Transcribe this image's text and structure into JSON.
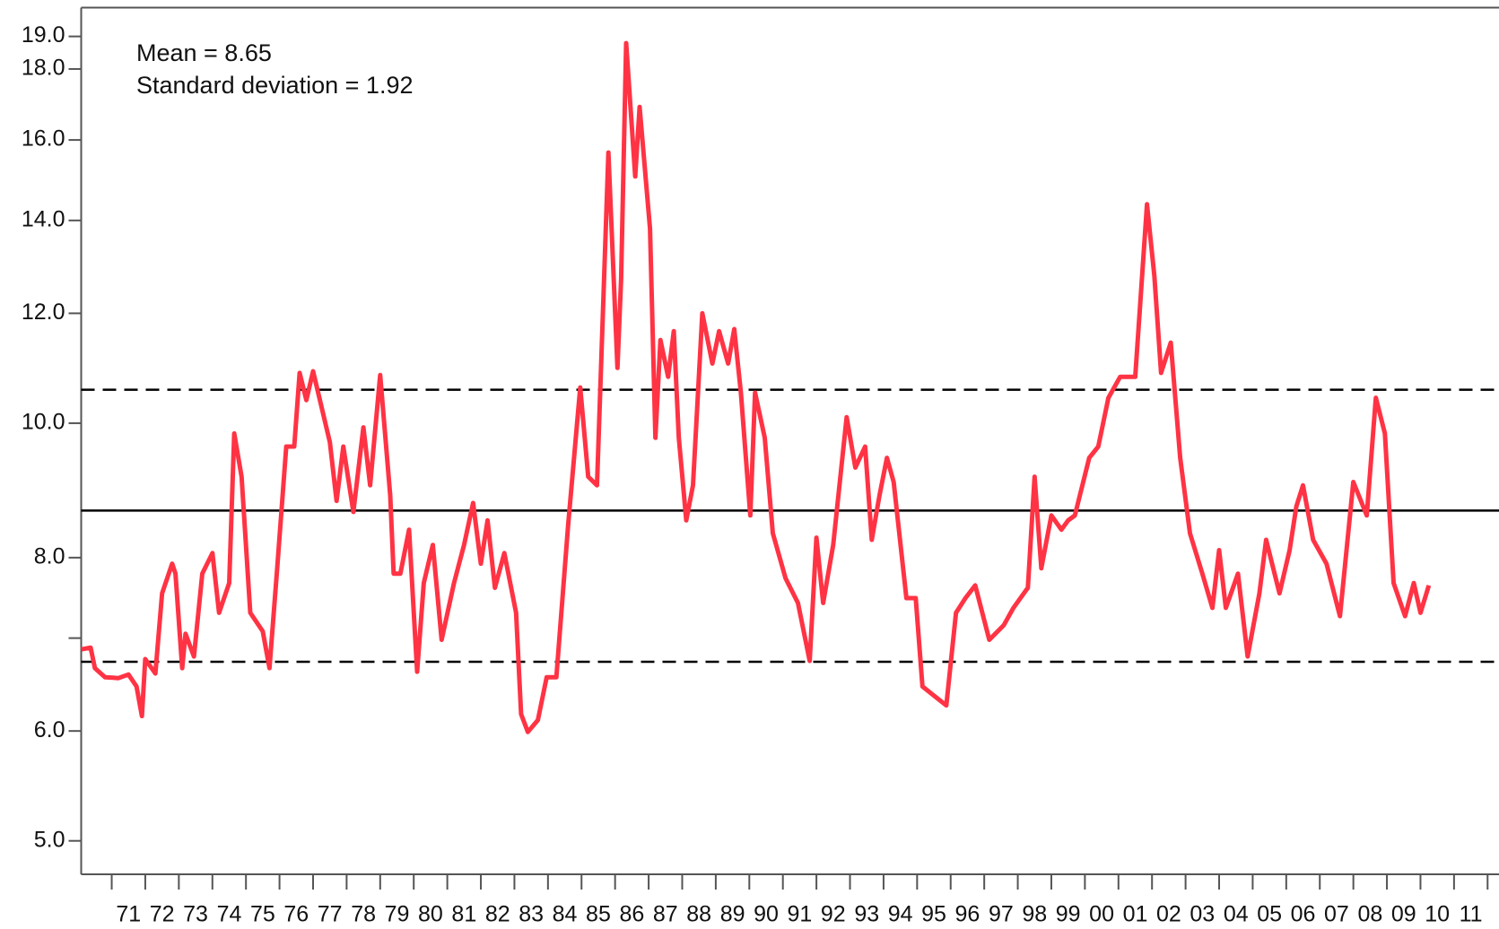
{
  "chart_data": {
    "type": "line",
    "annotations": [
      "Mean = 8.65",
      "Standard deviation = 1.92"
    ],
    "log_scale": true,
    "color": "#ff3344",
    "x": [
      1970.09,
      1970.37,
      1970.5,
      1970.8,
      1971.2,
      1971.5,
      1971.74,
      1971.9,
      1972.0,
      1972.3,
      1972.5,
      1972.8,
      1972.9,
      1973.1,
      1973.2,
      1973.45,
      1973.7,
      1974.0,
      1974.2,
      1974.5,
      1974.65,
      1974.87,
      1975.13,
      1975.5,
      1975.7,
      1975.93,
      1976.2,
      1976.44,
      1976.6,
      1976.8,
      1977.0,
      1977.5,
      1977.7,
      1977.9,
      1978.2,
      1978.5,
      1978.7,
      1979.0,
      1979.3,
      1979.4,
      1979.6,
      1979.86,
      1980.1,
      1980.3,
      1980.57,
      1980.83,
      1981.2,
      1981.5,
      1981.77,
      1982.0,
      1982.2,
      1982.42,
      1982.7,
      1983.05,
      1983.2,
      1983.4,
      1983.7,
      1983.96,
      1984.25,
      1984.6,
      1984.96,
      1985.2,
      1985.46,
      1985.8,
      1986.07,
      1986.18,
      1986.33,
      1986.6,
      1986.73,
      1987.04,
      1987.2,
      1987.35,
      1987.58,
      1987.75,
      1987.9,
      1988.12,
      1988.32,
      1988.6,
      1988.9,
      1989.1,
      1989.37,
      1989.55,
      1989.75,
      1990.03,
      1990.17,
      1990.46,
      1990.7,
      1991.08,
      1991.45,
      1991.8,
      1992.0,
      1992.2,
      1992.5,
      1992.9,
      1993.16,
      1993.45,
      1993.65,
      1993.88,
      1994.1,
      1994.3,
      1994.68,
      1994.96,
      1995.16,
      1995.44,
      1995.87,
      1996.16,
      1996.44,
      1996.73,
      1997.15,
      1997.58,
      1997.87,
      1998.3,
      1998.5,
      1998.7,
      1999.0,
      1999.3,
      1999.5,
      1999.7,
      2000.13,
      2000.4,
      2000.7,
      2001.05,
      2001.5,
      2001.85,
      2002.07,
      2002.27,
      2002.56,
      2002.84,
      2003.13,
      2003.5,
      2003.8,
      2004.0,
      2004.2,
      2004.56,
      2004.85,
      2005.2,
      2005.4,
      2005.8,
      2006.1,
      2006.3,
      2006.5,
      2006.8,
      2007.2,
      2007.6,
      2008.0,
      2008.4,
      2008.67,
      2008.94,
      2009.2,
      2009.54,
      2009.8,
      2010.0,
      2010.25
    ],
    "values": [
      6.87,
      6.89,
      6.66,
      6.56,
      6.55,
      6.59,
      6.46,
      6.15,
      6.76,
      6.6,
      7.54,
      7.92,
      7.79,
      6.66,
      7.05,
      6.79,
      7.79,
      8.06,
      7.3,
      7.67,
      9.83,
      9.15,
      7.3,
      7.08,
      6.66,
      7.86,
      9.62,
      9.62,
      10.87,
      10.39,
      10.9,
      9.69,
      8.79,
      9.62,
      8.63,
      9.93,
      9.02,
      10.83,
      8.87,
      7.79,
      7.79,
      8.38,
      6.62,
      7.67,
      8.17,
      6.98,
      7.67,
      8.17,
      8.76,
      7.92,
      8.51,
      7.61,
      8.06,
      7.3,
      6.17,
      5.99,
      6.11,
      6.56,
      6.56,
      8.44,
      10.61,
      9.15,
      9.02,
      15.67,
      10.96,
      12.71,
      18.79,
      15.06,
      16.9,
      13.81,
      9.76,
      11.48,
      10.8,
      11.65,
      9.76,
      8.51,
      9.02,
      12.0,
      11.04,
      11.65,
      11.04,
      11.69,
      10.52,
      8.58,
      10.52,
      9.76,
      8.33,
      7.73,
      7.42,
      6.74,
      8.27,
      7.42,
      8.17,
      10.1,
      9.29,
      9.62,
      8.24,
      8.87,
      9.44,
      9.07,
      7.48,
      7.48,
      6.46,
      6.38,
      6.26,
      7.3,
      7.48,
      7.64,
      6.98,
      7.15,
      7.36,
      7.61,
      9.15,
      7.86,
      8.58,
      8.38,
      8.51,
      8.58,
      9.44,
      9.62,
      10.43,
      10.8,
      10.8,
      14.38,
      12.77,
      10.87,
      11.43,
      9.44,
      8.33,
      7.79,
      7.36,
      8.1,
      7.36,
      7.79,
      6.79,
      7.54,
      8.24,
      7.54,
      8.1,
      8.71,
      9.02,
      8.24,
      7.92,
      7.26,
      9.07,
      8.58,
      10.43,
      9.83,
      7.67,
      7.26,
      7.67,
      7.3,
      7.64
    ],
    "hlines": [
      {
        "value": 8.65,
        "style": "solid"
      },
      {
        "value": 10.57,
        "style": "dashed"
      },
      {
        "value": 6.73,
        "style": "dashed"
      }
    ],
    "xlim": [
      1970.09,
      2012.34
    ],
    "xticks": [
      1971,
      1972,
      1973,
      1974,
      1975,
      1976,
      1977,
      1978,
      1979,
      1980,
      1981,
      1982,
      1983,
      1984,
      1985,
      1986,
      1987,
      1988,
      1989,
      1990,
      1991,
      1992,
      1993,
      1994,
      1995,
      1996,
      1997,
      1998,
      1999,
      2000,
      2001,
      2002,
      2003,
      2004,
      2005,
      2006,
      2007,
      2008,
      2009,
      2010,
      2011,
      2012
    ],
    "xticklabels": [
      {
        "value": 1971.5,
        "label": "71"
      },
      {
        "value": 1972.5,
        "label": "72"
      },
      {
        "value": 1973.5,
        "label": "73"
      },
      {
        "value": 1974.5,
        "label": "74"
      },
      {
        "value": 1975.5,
        "label": "75"
      },
      {
        "value": 1976.5,
        "label": "76"
      },
      {
        "value": 1977.5,
        "label": "77"
      },
      {
        "value": 1978.5,
        "label": "78"
      },
      {
        "value": 1979.5,
        "label": "79"
      },
      {
        "value": 1980.5,
        "label": "80"
      },
      {
        "value": 1981.5,
        "label": "81"
      },
      {
        "value": 1982.5,
        "label": "82"
      },
      {
        "value": 1983.5,
        "label": "83"
      },
      {
        "value": 1984.5,
        "label": "84"
      },
      {
        "value": 1985.5,
        "label": "85"
      },
      {
        "value": 1986.5,
        "label": "86"
      },
      {
        "value": 1987.5,
        "label": "87"
      },
      {
        "value": 1988.5,
        "label": "88"
      },
      {
        "value": 1989.5,
        "label": "89"
      },
      {
        "value": 1990.5,
        "label": "90"
      },
      {
        "value": 1991.5,
        "label": "91"
      },
      {
        "value": 1992.5,
        "label": "92"
      },
      {
        "value": 1993.5,
        "label": "93"
      },
      {
        "value": 1994.5,
        "label": "94"
      },
      {
        "value": 1995.5,
        "label": "95"
      },
      {
        "value": 1996.5,
        "label": "96"
      },
      {
        "value": 1997.5,
        "label": "97"
      },
      {
        "value": 1998.5,
        "label": "98"
      },
      {
        "value": 1999.5,
        "label": "99"
      },
      {
        "value": 2000.5,
        "label": "00"
      },
      {
        "value": 2001.5,
        "label": "01"
      },
      {
        "value": 2002.5,
        "label": "02"
      },
      {
        "value": 2003.5,
        "label": "03"
      },
      {
        "value": 2004.5,
        "label": "04"
      },
      {
        "value": 2005.5,
        "label": "05"
      },
      {
        "value": 2006.5,
        "label": "06"
      },
      {
        "value": 2007.5,
        "label": "07"
      },
      {
        "value": 2008.5,
        "label": "08"
      },
      {
        "value": 2009.5,
        "label": "09"
      },
      {
        "value": 2010.5,
        "label": "10"
      },
      {
        "value": 2011.5,
        "label": "11"
      }
    ],
    "ylim": [
      4.73,
      19.93
    ],
    "yticks": [
      {
        "value": 5,
        "label": "5.0"
      },
      {
        "value": 6,
        "label": "6.0"
      },
      {
        "value": 8,
        "label": "8.0"
      },
      {
        "value": 10,
        "label": "10.0"
      },
      {
        "value": 12,
        "label": "12.0"
      },
      {
        "value": 14,
        "label": "14.0"
      },
      {
        "value": 16,
        "label": "16.0"
      },
      {
        "value": 18,
        "label": "18.0"
      },
      {
        "value": 19,
        "label": "19.0"
      }
    ],
    "yminorticks": [
      7
    ]
  }
}
